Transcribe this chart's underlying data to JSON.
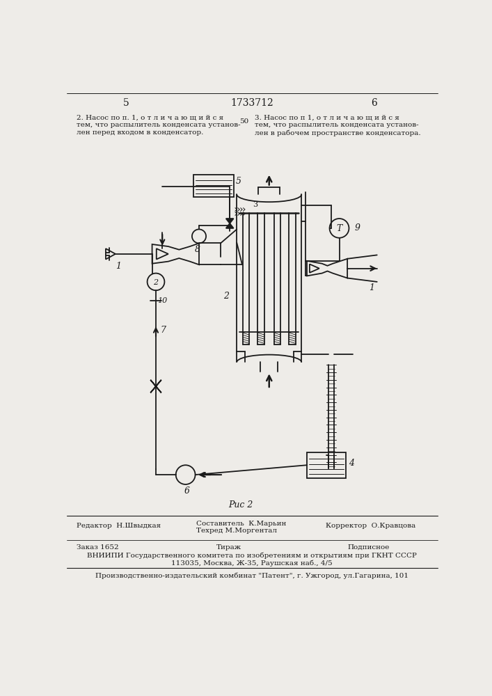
{
  "bg_color": "#eeece8",
  "line_color": "#1a1a1a",
  "page_number_left": "5",
  "page_number_center": "1733712",
  "page_number_right": "6",
  "fig_label": "Рис 2",
  "footer_editor": "Редактор  Н.Швыдкая",
  "footer_composer": "Составитель  К.Марьин",
  "footer_techred": "Техред М.Моргентал",
  "footer_corrector": "Корректор  О.Кравцова",
  "footer_order": "Заказ 1652",
  "footer_tirazh": "Тираж",
  "footer_podpisnoe": "Подписное",
  "footer_vniipи": "ВНИИПИ Государственного комитета по изобретениям и открытиям при ГКНТ СССР",
  "footer_address": "113035, Москва, Ж-35, Раушская наб., 4/5",
  "footer_patent": "Производственно-издательский комбинат \"Патент\", г. Ужгород, ул.Гагарина, 101"
}
